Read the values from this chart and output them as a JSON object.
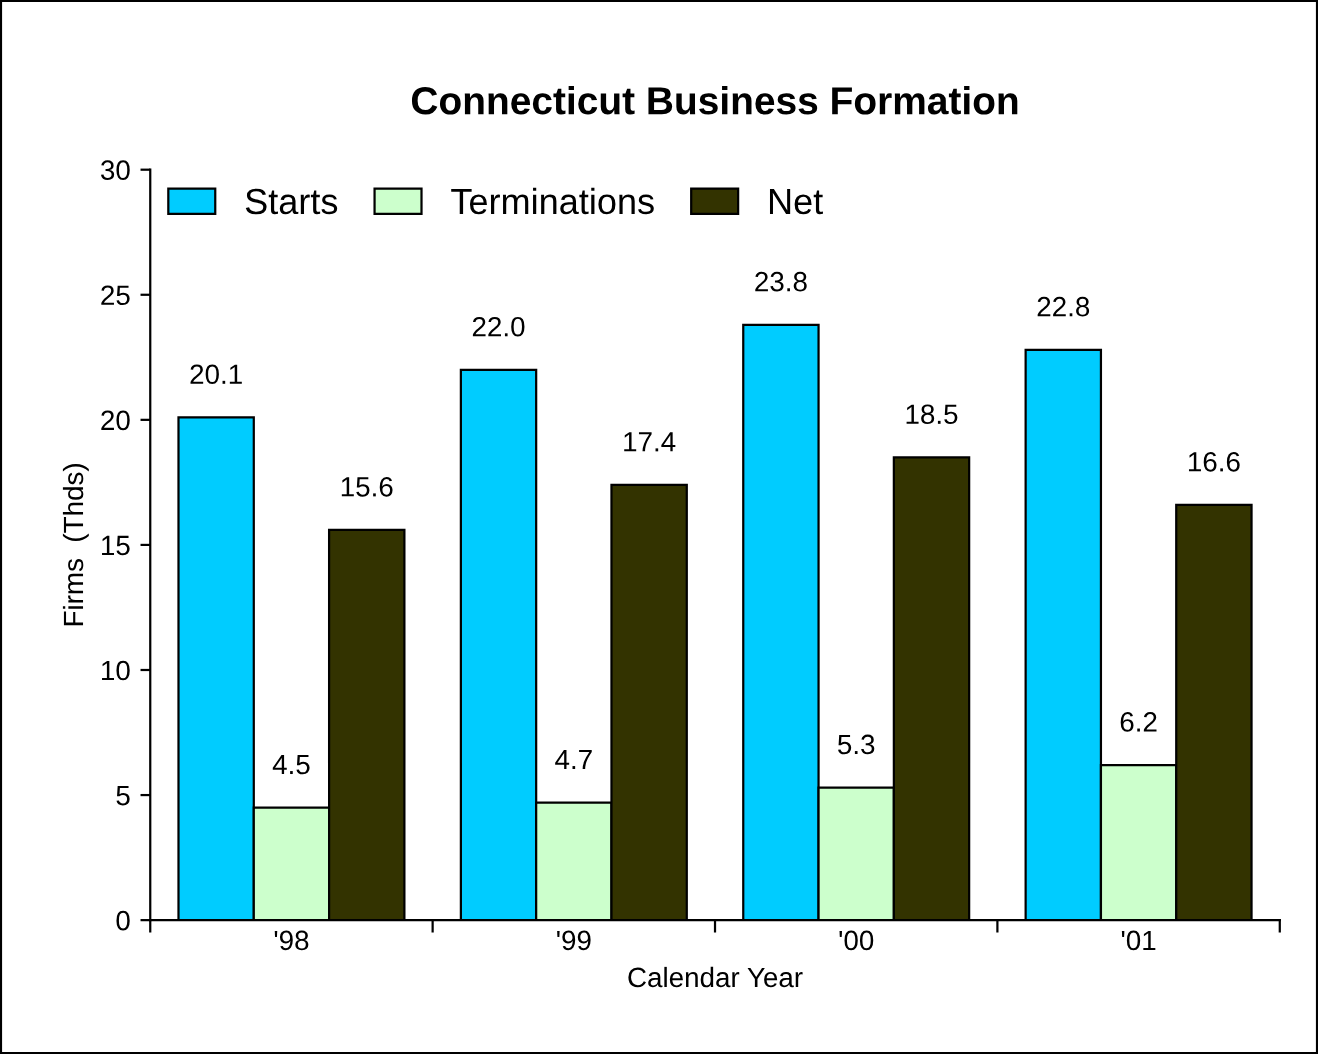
{
  "chart_data": {
    "type": "bar",
    "title": "Connecticut Business Formation",
    "xlabel": "Calendar Year",
    "ylabel": "Firms  (Thds)",
    "categories": [
      "'98",
      "'99",
      "'00",
      "'01"
    ],
    "series": [
      {
        "name": "Starts",
        "color": "#00ccff",
        "values": [
          20.1,
          22.0,
          23.8,
          22.8
        ],
        "value_labels": [
          "20.1",
          "22.0",
          "23.8",
          "22.8"
        ]
      },
      {
        "name": "Terminations",
        "color": "#ccffcc",
        "values": [
          4.5,
          4.7,
          5.3,
          6.2
        ],
        "value_labels": [
          "4.5",
          "4.7",
          "5.3",
          "6.2"
        ]
      },
      {
        "name": "Net",
        "color": "#333300",
        "values": [
          15.6,
          17.4,
          18.5,
          16.6
        ],
        "value_labels": [
          "15.6",
          "17.4",
          "18.5",
          "16.6"
        ]
      }
    ],
    "ylim": [
      0,
      30
    ],
    "yticks": [
      0,
      5,
      10,
      15,
      20,
      25,
      30
    ],
    "grid": false,
    "legend": "top left"
  }
}
